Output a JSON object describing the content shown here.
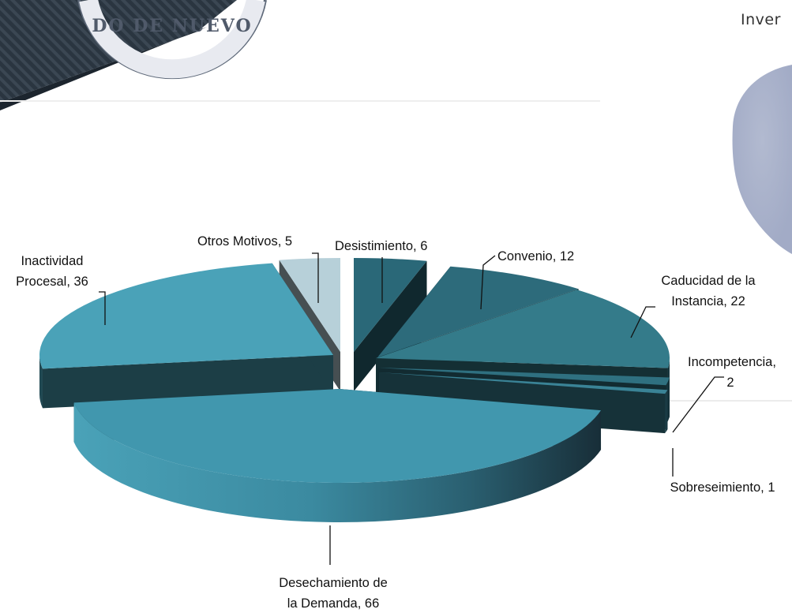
{
  "header_partial": "Inver",
  "seal_partial_text": "DO DE NUEVO",
  "chart_data": {
    "type": "pie",
    "title": "",
    "slices": [
      {
        "label": "Desistimiento",
        "value": 6,
        "label_text": "Desistimiento, 6",
        "color": "#2a6878"
      },
      {
        "label": "Convenio",
        "value": 12,
        "label_text": "Convenio, 12",
        "color": "#2d6b7b"
      },
      {
        "label": "Caducidad de la Instancia",
        "value": 22,
        "label_text": "Caducidad de la Instancia, 22",
        "color": "#347b8a"
      },
      {
        "label": "Incompetencia",
        "value": 2,
        "label_text": "Incompetencia, 2",
        "color": "#2f7080"
      },
      {
        "label": "Sobreseimiento",
        "value": 1,
        "label_text": "Sobreseimiento, 1",
        "color": "#3a8396"
      },
      {
        "label": "Desechamiento de la Demanda",
        "value": 66,
        "label_text": "Desechamiento de la Demanda, 66",
        "color": "#4197ae"
      },
      {
        "label": "Inactividad Procesal",
        "value": 36,
        "label_text": "Inactividad Procesal, 36",
        "color": "#4aa2b8"
      },
      {
        "label": "Otros Motivos",
        "value": 5,
        "label_text": "Otros Motivos, 5",
        "color": "#b7d0d9"
      }
    ],
    "legend": "none",
    "style": "3d-exploded"
  },
  "labels": {
    "desistimiento": [
      "Desistimiento, 6"
    ],
    "convenio": [
      "Convenio, 12"
    ],
    "caducidad": [
      "Caducidad de la",
      "Instancia, 22"
    ],
    "incompetencia": [
      "Incompetencia,",
      "2"
    ],
    "sobreseimiento": [
      "Sobreseimiento, 1"
    ],
    "desechamiento": [
      "Desechamiento de",
      "la Demanda,  66"
    ],
    "inactividad": [
      "Inactividad",
      "Procesal, 36"
    ],
    "otros": [
      "Otros Motivos,  5"
    ]
  }
}
